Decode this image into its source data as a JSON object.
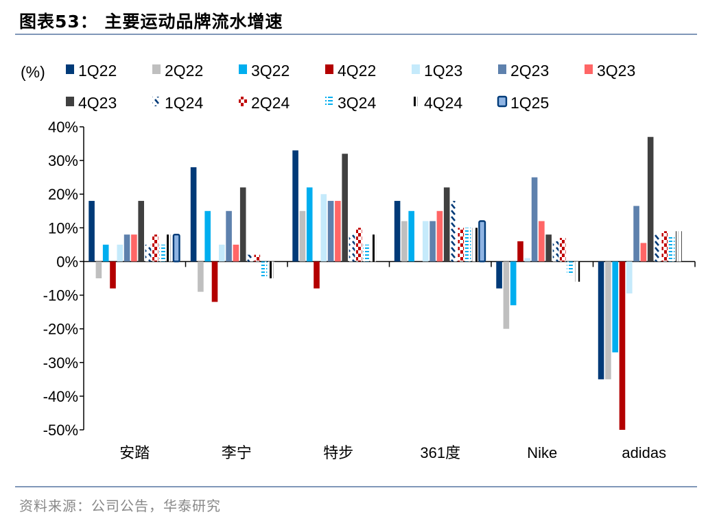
{
  "title": "图表53：  主要运动品牌流水增速",
  "source": "资料来源：公司公告，华泰研究",
  "chart_data": {
    "type": "bar",
    "title": "图表53：主要运动品牌流水增速",
    "ylabel": "(%)",
    "ylim": [
      -50,
      40
    ],
    "yticks": [
      40,
      30,
      20,
      10,
      0,
      -10,
      -20,
      -30,
      -40,
      -50
    ],
    "ytick_labels": [
      "40%",
      "30%",
      "20%",
      "10%",
      "0%",
      "-10%",
      "-20%",
      "-30%",
      "-40%",
      "-50%"
    ],
    "grid": false,
    "legend_position": "top",
    "categories": [
      "安踏",
      "李宁",
      "特步",
      "361度",
      "Nike",
      "adidas"
    ],
    "series": [
      {
        "name": "1Q22",
        "color": "#003a78",
        "pattern": "solid",
        "values": [
          18,
          28,
          33,
          18,
          -8,
          -35
        ]
      },
      {
        "name": "2Q22",
        "color": "#bfbfbf",
        "pattern": "solid",
        "values": [
          -5,
          -9,
          15,
          12,
          -20,
          -35
        ]
      },
      {
        "name": "3Q22",
        "color": "#00aeef",
        "pattern": "solid",
        "values": [
          5,
          15,
          22,
          15,
          -13,
          -27
        ]
      },
      {
        "name": "4Q22",
        "color": "#b30000",
        "pattern": "solid",
        "values": [
          -8,
          -12,
          -8,
          null,
          6,
          -50
        ]
      },
      {
        "name": "1Q23",
        "color": "#c5eafb",
        "pattern": "solid",
        "values": [
          5,
          5,
          20,
          12,
          1,
          -9.5
        ]
      },
      {
        "name": "2Q23",
        "color": "#5e81ad",
        "pattern": "solid",
        "values": [
          8,
          15,
          18,
          12,
          25,
          16.5
        ]
      },
      {
        "name": "3Q23",
        "color": "#ff6666",
        "pattern": "solid",
        "values": [
          8,
          5,
          18,
          15,
          12,
          5.5
        ]
      },
      {
        "name": "4Q23",
        "color": "#404040",
        "pattern": "solid",
        "values": [
          18,
          22,
          32,
          22,
          8,
          37
        ]
      },
      {
        "name": "1Q24",
        "color": "#003a78",
        "pattern": "diagonal",
        "values": [
          5,
          2,
          8,
          18,
          6,
          8
        ]
      },
      {
        "name": "2Q24",
        "color": "#c00000",
        "pattern": "checker",
        "values": [
          8,
          2,
          10,
          10,
          7,
          9
        ]
      },
      {
        "name": "3Q24",
        "color": "#00aeef",
        "pattern": "horizontal",
        "values": [
          5,
          -5,
          5,
          10,
          -4,
          7.5
        ]
      },
      {
        "name": "4Q24",
        "color": "#000000",
        "pattern": "vertical",
        "values": [
          8,
          -5,
          8,
          10,
          -6,
          9
        ]
      },
      {
        "name": "1Q25",
        "color": "#8fb4e3",
        "pattern": "outlined",
        "values": [
          8,
          null,
          null,
          12,
          null,
          null
        ]
      }
    ]
  }
}
